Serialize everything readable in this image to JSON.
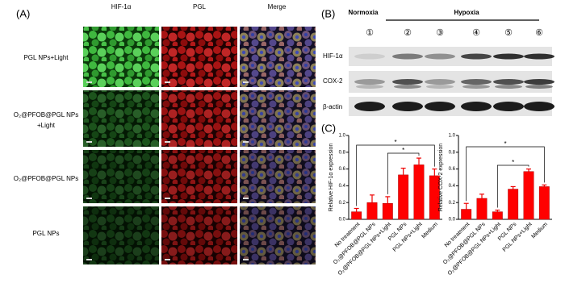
{
  "panel_labels": [
    "(A)",
    "(B)",
    "(C)"
  ],
  "microscopy": {
    "columns": [
      "HIF-1α",
      "PGL",
      "Merge"
    ],
    "rows": [
      [
        "PGL NPs+Light"
      ],
      [
        "O₂@PFOB@PGL NPs",
        "+Light"
      ],
      [
        "O₂@PFOB@PGL NPs"
      ],
      [
        "PGL NPs"
      ]
    ]
  },
  "blot": {
    "groups": [
      "Normoxia",
      "Hypoxia"
    ],
    "lanes": [
      "①",
      "②",
      "③",
      "④",
      "⑤",
      "⑥"
    ],
    "proteins": [
      "HIF-1α",
      "COX-2",
      "β-actin"
    ]
  },
  "chart_data": [
    {
      "type": "bar",
      "ylabel": "Relative HIF-1α expression",
      "categories": [
        "No treatment",
        "O₂@PFOB@PGL NPs",
        "O₂@PFOB@PGL NPs+Light",
        "PGL NPs",
        "PGL NPs+Light",
        "Medium"
      ],
      "values": [
        0.09,
        0.2,
        0.19,
        0.53,
        0.65,
        0.52
      ],
      "errors": [
        0.04,
        0.09,
        0.08,
        0.08,
        0.08,
        0.08
      ],
      "color": "#ff0000",
      "ylim": [
        0,
        1
      ],
      "yticks": [
        {
          "value": 0,
          "label": "0.0"
        },
        {
          "value": 0.2,
          "label": "0.2"
        },
        {
          "value": 0.4,
          "label": "0.4"
        },
        {
          "value": 0.6,
          "label": "0.6"
        },
        {
          "value": 0.8,
          "label": "0.8"
        },
        {
          "value": 1,
          "label": "1.0"
        }
      ],
      "annotations": [
        "*",
        "*"
      ]
    },
    {
      "type": "bar",
      "ylabel": "Relative COX-2 expression",
      "categories": [
        "No treatment",
        "O₂@PFOB@PGL NPs",
        "O₂@PFOB@PGL NPs+Light",
        "PGL NPs",
        "PGL NPs+Light",
        "Medium"
      ],
      "values": [
        0.12,
        0.25,
        0.09,
        0.36,
        0.57,
        0.39
      ],
      "errors": [
        0.07,
        0.05,
        0.02,
        0.03,
        0.03,
        0.02
      ],
      "color": "#ff0000",
      "ylim": [
        0,
        1
      ],
      "yticks": [
        {
          "value": 0,
          "label": "0.0"
        },
        {
          "value": 0.2,
          "label": "0.2"
        },
        {
          "value": 0.4,
          "label": "0.4"
        },
        {
          "value": 0.6,
          "label": "0.6"
        },
        {
          "value": 0.8,
          "label": "0.8"
        },
        {
          "value": 1,
          "label": "1.0"
        }
      ],
      "annotations": [
        "*",
        "*"
      ]
    }
  ]
}
